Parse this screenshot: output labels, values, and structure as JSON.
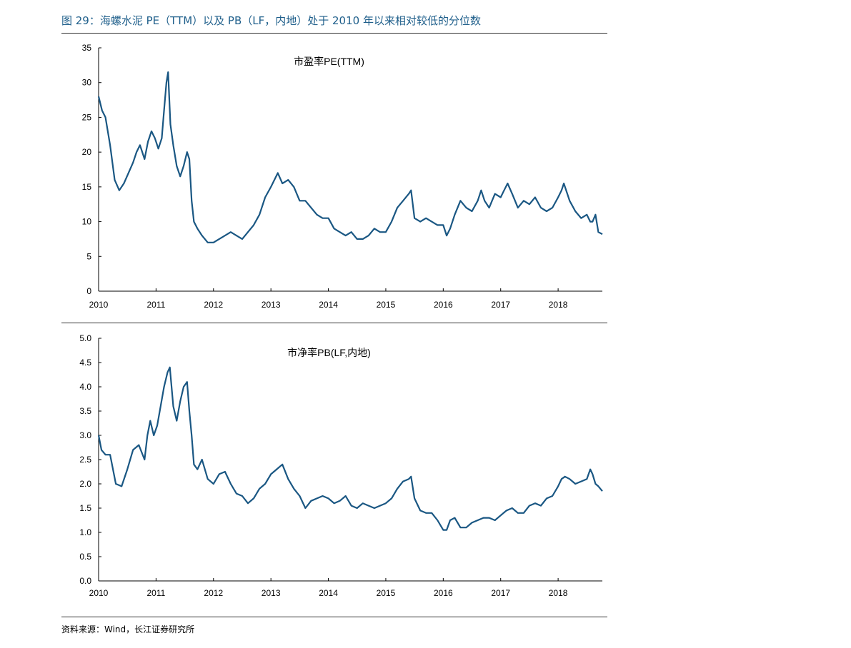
{
  "figure_title": "图 29：海螺水泥 PE（TTM）以及 PB（LF，内地）处于 2010 年以来相对较低的分位数",
  "source": "资料来源：Wind，长江证券研究所",
  "line_color": "#1a5783",
  "chart_data": [
    {
      "type": "line",
      "title": "市盈率PE(TTM)",
      "xlabel": "",
      "ylabel": "",
      "xlim": [
        2010.0,
        2018.77
      ],
      "ylim": [
        0,
        35
      ],
      "yticks": [
        0,
        5,
        10,
        15,
        20,
        25,
        30,
        35
      ],
      "ytick_labels": [
        "0",
        "5",
        "10",
        "15",
        "20",
        "25",
        "30",
        "35"
      ],
      "xticks": [
        2010,
        2011,
        2012,
        2013,
        2014,
        2015,
        2016,
        2017,
        2018
      ],
      "xtick_labels": [
        "2010",
        "2011",
        "2012",
        "2013",
        "2014",
        "2015",
        "2016",
        "2017",
        "2018"
      ],
      "grid": false,
      "series": [
        {
          "x": [
            2010.0,
            2010.06,
            2010.12,
            2010.2,
            2010.28,
            2010.36,
            2010.44,
            2010.52,
            2010.6,
            2010.66,
            2010.72,
            2010.8,
            2010.86,
            2010.92,
            2010.98,
            2011.04,
            2011.1,
            2011.14,
            2011.18,
            2011.21,
            2011.25,
            2011.3,
            2011.36,
            2011.42,
            2011.48,
            2011.54,
            2011.58,
            2011.62,
            2011.66,
            2011.72,
            2011.8,
            2011.9,
            2012.0,
            2012.1,
            2012.2,
            2012.3,
            2012.4,
            2012.5,
            2012.6,
            2012.7,
            2012.8,
            2012.9,
            2013.0,
            2013.06,
            2013.12,
            2013.2,
            2013.3,
            2013.4,
            2013.5,
            2013.6,
            2013.7,
            2013.8,
            2013.9,
            2014.0,
            2014.1,
            2014.2,
            2014.3,
            2014.4,
            2014.5,
            2014.6,
            2014.7,
            2014.8,
            2014.9,
            2015.0,
            2015.1,
            2015.2,
            2015.3,
            2015.4,
            2015.44,
            2015.5,
            2015.6,
            2015.7,
            2015.8,
            2015.9,
            2016.0,
            2016.06,
            2016.12,
            2016.2,
            2016.3,
            2016.4,
            2016.5,
            2016.6,
            2016.66,
            2016.72,
            2016.8,
            2016.9,
            2017.0,
            2017.06,
            2017.12,
            2017.2,
            2017.3,
            2017.4,
            2017.5,
            2017.6,
            2017.7,
            2017.8,
            2017.9,
            2018.0,
            2018.06,
            2018.1,
            2018.16,
            2018.2,
            2018.3,
            2018.4,
            2018.5,
            2018.56,
            2018.6,
            2018.65,
            2018.7,
            2018.77
          ],
          "y": [
            28,
            26,
            25,
            21,
            16,
            14.5,
            15.5,
            17,
            18.5,
            20,
            21,
            19,
            21.5,
            23,
            22,
            20.5,
            22,
            26,
            30,
            31.5,
            24,
            21,
            18,
            16.5,
            18,
            20,
            19,
            13,
            10,
            9,
            8,
            7,
            7,
            7.5,
            8,
            8.5,
            8,
            7.5,
            8.5,
            9.5,
            11,
            13.5,
            15,
            16,
            17,
            15.5,
            16,
            15,
            13,
            13,
            12,
            11,
            10.5,
            10.5,
            9,
            8.5,
            8,
            8.5,
            7.5,
            7.5,
            8,
            9,
            8.5,
            8.5,
            10,
            12,
            13,
            14,
            14.5,
            10.5,
            10,
            10.5,
            10,
            9.5,
            9.5,
            8,
            9,
            11,
            13,
            12,
            11.5,
            13,
            14.5,
            13,
            12,
            14,
            13.5,
            14.5,
            15.5,
            14,
            12,
            13,
            12.5,
            13.5,
            12,
            11.5,
            12,
            13.5,
            14.5,
            15.5,
            14,
            13,
            11.5,
            10.5,
            11,
            10,
            10,
            11,
            8.5,
            8.2
          ]
        }
      ]
    },
    {
      "type": "line",
      "title": "市净率PB(LF,内地)",
      "xlabel": "",
      "ylabel": "",
      "xlim": [
        2010.0,
        2018.77
      ],
      "ylim": [
        0,
        5
      ],
      "yticks": [
        0,
        0.5,
        1,
        1.5,
        2,
        2.5,
        3,
        3.5,
        4,
        4.5,
        5
      ],
      "ytick_labels": [
        "0.0",
        "0.5",
        "1.0",
        "1.5",
        "2.0",
        "2.5",
        "3.0",
        "3.5",
        "4.0",
        "4.5",
        "5.0"
      ],
      "xticks": [
        2010,
        2011,
        2012,
        2013,
        2014,
        2015,
        2016,
        2017,
        2018
      ],
      "xtick_labels": [
        "2010",
        "2011",
        "2012",
        "2013",
        "2014",
        "2015",
        "2016",
        "2017",
        "2018"
      ],
      "grid": false,
      "series": [
        {
          "x": [
            2010.0,
            2010.05,
            2010.12,
            2010.2,
            2010.3,
            2010.4,
            2010.5,
            2010.6,
            2010.7,
            2010.8,
            2010.85,
            2010.9,
            2010.96,
            2011.02,
            2011.08,
            2011.14,
            2011.2,
            2011.24,
            2011.3,
            2011.36,
            2011.42,
            2011.48,
            2011.54,
            2011.58,
            2011.62,
            2011.66,
            2011.72,
            2011.8,
            2011.9,
            2012.0,
            2012.1,
            2012.2,
            2012.3,
            2012.4,
            2012.5,
            2012.6,
            2012.7,
            2012.8,
            2012.9,
            2013.0,
            2013.1,
            2013.2,
            2013.3,
            2013.4,
            2013.5,
            2013.6,
            2013.7,
            2013.8,
            2013.9,
            2014.0,
            2014.1,
            2014.2,
            2014.3,
            2014.4,
            2014.5,
            2014.6,
            2014.7,
            2014.8,
            2014.9,
            2015.0,
            2015.1,
            2015.2,
            2015.3,
            2015.4,
            2015.44,
            2015.5,
            2015.6,
            2015.7,
            2015.8,
            2015.9,
            2016.0,
            2016.06,
            2016.12,
            2016.2,
            2016.3,
            2016.4,
            2016.5,
            2016.6,
            2016.7,
            2016.8,
            2016.9,
            2017.0,
            2017.1,
            2017.2,
            2017.3,
            2017.4,
            2017.5,
            2017.6,
            2017.7,
            2017.8,
            2017.9,
            2018.0,
            2018.06,
            2018.12,
            2018.2,
            2018.3,
            2018.4,
            2018.5,
            2018.56,
            2018.6,
            2018.65,
            2018.7,
            2018.77
          ],
          "y": [
            3.0,
            2.7,
            2.6,
            2.6,
            2.0,
            1.95,
            2.3,
            2.7,
            2.8,
            2.5,
            3.0,
            3.3,
            3.0,
            3.2,
            3.6,
            4.0,
            4.3,
            4.4,
            3.6,
            3.3,
            3.7,
            4.0,
            4.1,
            3.5,
            3.0,
            2.4,
            2.3,
            2.5,
            2.1,
            2.0,
            2.2,
            2.25,
            2.0,
            1.8,
            1.75,
            1.6,
            1.7,
            1.9,
            2.0,
            2.2,
            2.3,
            2.4,
            2.1,
            1.9,
            1.75,
            1.5,
            1.65,
            1.7,
            1.75,
            1.7,
            1.6,
            1.65,
            1.75,
            1.55,
            1.5,
            1.6,
            1.55,
            1.5,
            1.55,
            1.6,
            1.7,
            1.9,
            2.05,
            2.1,
            2.15,
            1.7,
            1.45,
            1.4,
            1.4,
            1.25,
            1.05,
            1.05,
            1.25,
            1.3,
            1.1,
            1.1,
            1.2,
            1.25,
            1.3,
            1.3,
            1.25,
            1.35,
            1.45,
            1.5,
            1.4,
            1.4,
            1.55,
            1.6,
            1.55,
            1.7,
            1.75,
            1.95,
            2.1,
            2.15,
            2.1,
            2.0,
            2.05,
            2.1,
            2.3,
            2.2,
            2.0,
            1.95,
            1.85
          ]
        }
      ]
    }
  ]
}
